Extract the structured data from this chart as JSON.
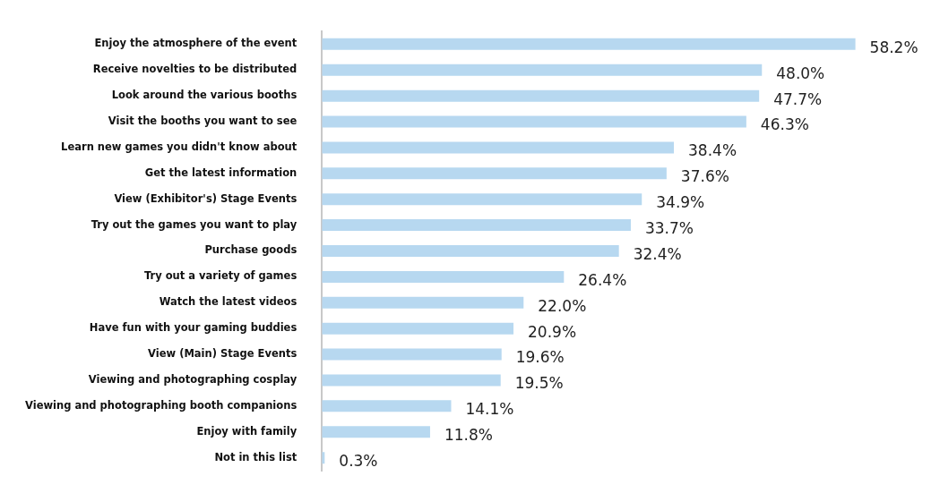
{
  "chart_data": {
    "type": "bar",
    "orientation": "horizontal",
    "tick_labels": "y",
    "grid": false,
    "legend": false,
    "categories": [
      "Enjoy the atmosphere of the event",
      "Receive novelties to be distributed",
      "Look around the various booths",
      "Visit the booths you want to see",
      "Learn new games you didn't know about",
      "Get the latest information",
      "View (Exhibitor's) Stage Events",
      "Try out the games you want to play",
      "Purchase goods",
      "Try out a variety of games",
      "Watch the latest videos",
      "Have fun with your gaming buddies",
      "View (Main) Stage Events",
      "Viewing and photographing cosplay",
      "Viewing and photographing booth companions",
      "Enjoy with family",
      "Not in this list"
    ],
    "values": [
      58.2,
      48.0,
      47.7,
      46.3,
      38.4,
      37.6,
      34.9,
      33.7,
      32.4,
      26.4,
      22.0,
      20.9,
      19.6,
      19.5,
      14.1,
      11.8,
      0.3
    ],
    "value_labels": [
      "58.2%",
      "48.0%",
      "47.7%",
      "46.3%",
      "38.4%",
      "37.6%",
      "34.9%",
      "33.7%",
      "32.4%",
      "26.4%",
      "22.0%",
      "20.9%",
      "19.6%",
      "19.5%",
      "14.1%",
      "11.8%",
      "0.3%"
    ],
    "color": "#b7d8f0"
  }
}
